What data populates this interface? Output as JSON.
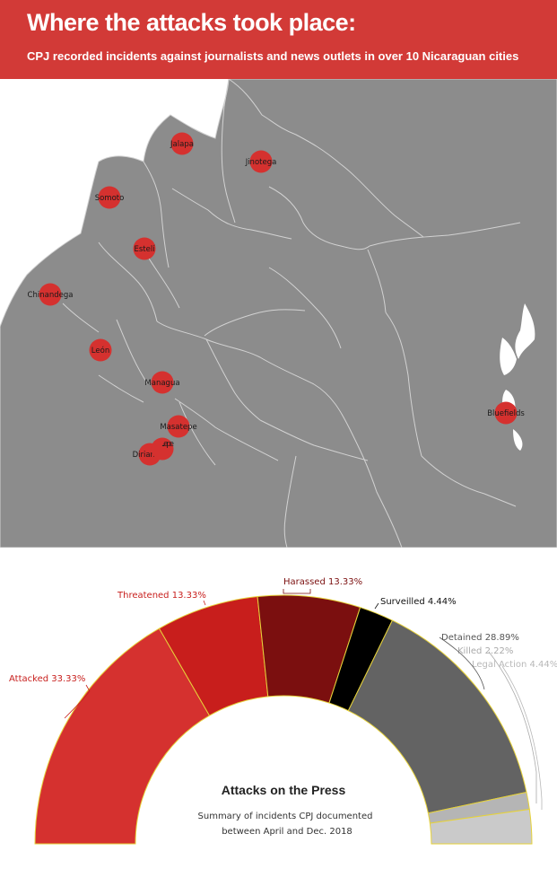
{
  "header": {
    "title": "Where the attacks took place:",
    "subtitle": "CPJ recorded incidents against journalists and news outlets in over 10 Nicaraguan cities"
  },
  "colors": {
    "header_bg": "#d23a37",
    "land": "#8c8c8c",
    "border": "#cfcfcf",
    "marker": "#d5312f"
  },
  "map": {
    "cities": [
      {
        "name": "Jalapa"
      },
      {
        "name": "Jinotega"
      },
      {
        "name": "Somoto"
      },
      {
        "name": "Estelí"
      },
      {
        "name": "Chinandega"
      },
      {
        "name": "León"
      },
      {
        "name": "Managua"
      },
      {
        "name": "Masatepe"
      },
      {
        "name": "Diriamba"
      },
      {
        "name": "Jinotepe"
      },
      {
        "name": "Bluefields"
      }
    ]
  },
  "chart_data": {
    "type": "pie",
    "subtype": "semi-donut",
    "title": "Attacks on the Press",
    "subtitle_lines": [
      "Summary of incidents CPJ documented",
      "between April and Dec. 2018"
    ],
    "slices": [
      {
        "label": "Attacked 33.33%",
        "value": 33.33,
        "color": "#d5312f",
        "label_color": "#c8201e"
      },
      {
        "label": "Threatened 13.33%",
        "value": 13.33,
        "color": "#c81e1c",
        "label_color": "#c8201e"
      },
      {
        "label": "Harassed 13.33%",
        "value": 13.33,
        "color": "#7b0f0f",
        "label_color": "#7b0f0f"
      },
      {
        "label": "Surveilled 4.44%",
        "value": 4.44,
        "color": "#000000",
        "label_color": "#111111"
      },
      {
        "label": "Detained 28.89%",
        "value": 28.89,
        "color": "#636363",
        "label_color": "#555555"
      },
      {
        "label": "Killed 2.22%",
        "value": 2.22,
        "color": "#b5b5b5",
        "label_color": "#aaaaaa"
      },
      {
        "label": "Legal Action 4.44%",
        "value": 4.44,
        "color": "#cacaca",
        "label_color": "#b8b8b8"
      }
    ]
  }
}
